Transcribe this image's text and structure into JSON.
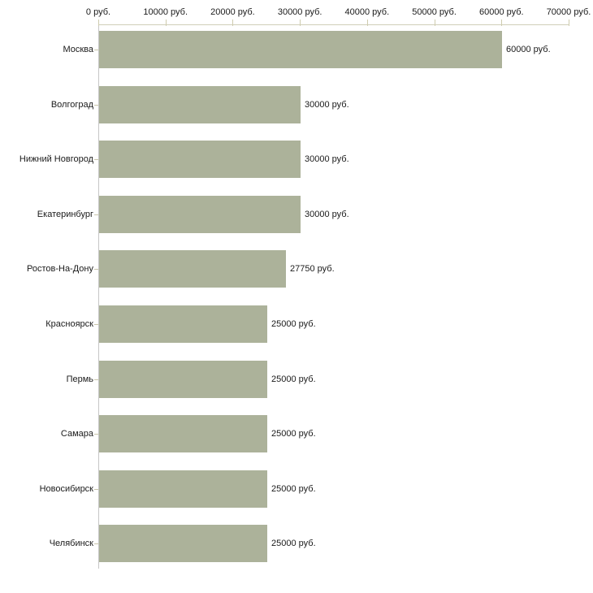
{
  "chart_data": {
    "type": "bar",
    "orientation": "horizontal",
    "title": "",
    "xlabel": "",
    "ylabel": "",
    "xlim": [
      0,
      70000
    ],
    "grid": false,
    "legend": null,
    "categories": [
      "Москва",
      "Волгоград",
      "Нижний Новгород",
      "Екатеринбург",
      "Ростов-На-Дону",
      "Красноярск",
      "Пермь",
      "Самара",
      "Новосибирск",
      "Челябинск"
    ],
    "values": [
      60000,
      30000,
      30000,
      30000,
      27750,
      25000,
      25000,
      25000,
      25000,
      25000
    ],
    "value_labels": [
      "60000 руб.",
      "30000 руб.",
      "30000 руб.",
      "30000 руб.",
      "27750 руб.",
      "25000 руб.",
      "25000 руб.",
      "25000 руб.",
      "25000 руб.",
      "25000 руб."
    ],
    "x_ticks": [
      0,
      10000,
      20000,
      30000,
      40000,
      50000,
      60000,
      70000
    ],
    "x_tick_labels": [
      "0 руб.",
      "10000 руб.",
      "20000 руб.",
      "30000 руб.",
      "40000 руб.",
      "50000 руб.",
      "60000 руб.",
      "70000 руб."
    ],
    "colors": {
      "bar": "#acb29a",
      "x_axis_line": "#d0ceb8",
      "x_tick": "#cfccaf",
      "y_axis_line": "#c6c6c6",
      "category_tick": "#c9c6ab",
      "text": "#1a1a1a",
      "background": "#ffffff"
    }
  }
}
